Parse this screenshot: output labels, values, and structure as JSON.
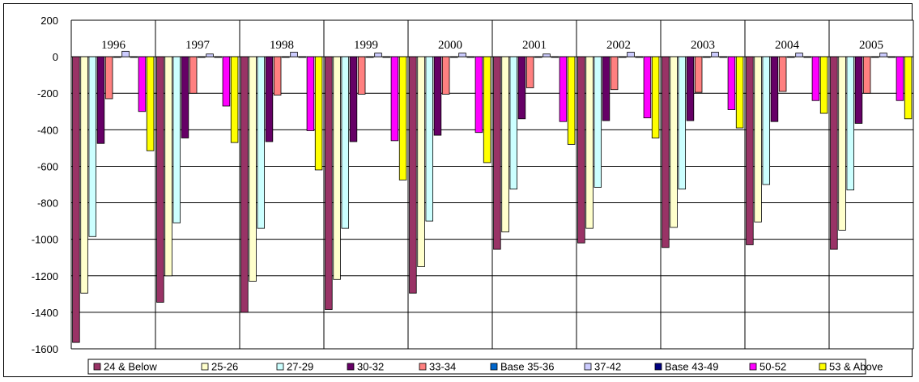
{
  "chart_data": {
    "type": "bar",
    "title": "",
    "xlabel": "",
    "ylabel": "",
    "categories": [
      "1996",
      "1997",
      "1998",
      "1999",
      "2000",
      "2001",
      "2002",
      "2003",
      "2004",
      "2005"
    ],
    "ylim": [
      -1600,
      200
    ],
    "yticks": [
      200,
      0,
      -200,
      -400,
      -600,
      -800,
      -1000,
      -1200,
      -1400,
      -1600
    ],
    "grid": true,
    "legend_position": "bottom",
    "series": [
      {
        "name": "24 & Below",
        "color": "#993366",
        "values": [
          -1565,
          -1345,
          -1400,
          -1385,
          -1295,
          -1055,
          -1020,
          -1045,
          -1030,
          -1055
        ]
      },
      {
        "name": "25-26",
        "color": "#FFFFCC",
        "values": [
          -1295,
          -1200,
          -1230,
          -1220,
          -1150,
          -960,
          -940,
          -935,
          -905,
          -950
        ]
      },
      {
        "name": "27-29",
        "color": "#CCFFFF",
        "values": [
          -985,
          -910,
          -940,
          -940,
          -900,
          -725,
          -715,
          -725,
          -700,
          -730
        ]
      },
      {
        "name": "30-32",
        "color": "#660066",
        "values": [
          -475,
          -445,
          -465,
          -465,
          -430,
          -340,
          -350,
          -350,
          -355,
          -365
        ]
      },
      {
        "name": "33-34",
        "color": "#FF8080",
        "values": [
          -230,
          -200,
          -210,
          -205,
          -205,
          -170,
          -180,
          -195,
          -190,
          -200
        ]
      },
      {
        "name": "Base 35-36",
        "color": "#0066CC",
        "values": [
          0,
          0,
          0,
          0,
          0,
          0,
          0,
          0,
          0,
          0
        ]
      },
      {
        "name": "37-42",
        "color": "#CCCCFF",
        "values": [
          30,
          15,
          25,
          20,
          20,
          15,
          25,
          25,
          20,
          20
        ]
      },
      {
        "name": "Base 43-49",
        "color": "#000080",
        "values": [
          0,
          0,
          0,
          0,
          0,
          0,
          0,
          0,
          0,
          0
        ]
      },
      {
        "name": "50-52",
        "color": "#FF00FF",
        "values": [
          -300,
          -270,
          -405,
          -460,
          -415,
          -355,
          -335,
          -290,
          -240,
          -240
        ]
      },
      {
        "name": "53 & Above",
        "color": "#FFFF00",
        "values": [
          -515,
          -470,
          -620,
          -675,
          -580,
          -480,
          -445,
          -390,
          -310,
          -340
        ]
      }
    ]
  }
}
